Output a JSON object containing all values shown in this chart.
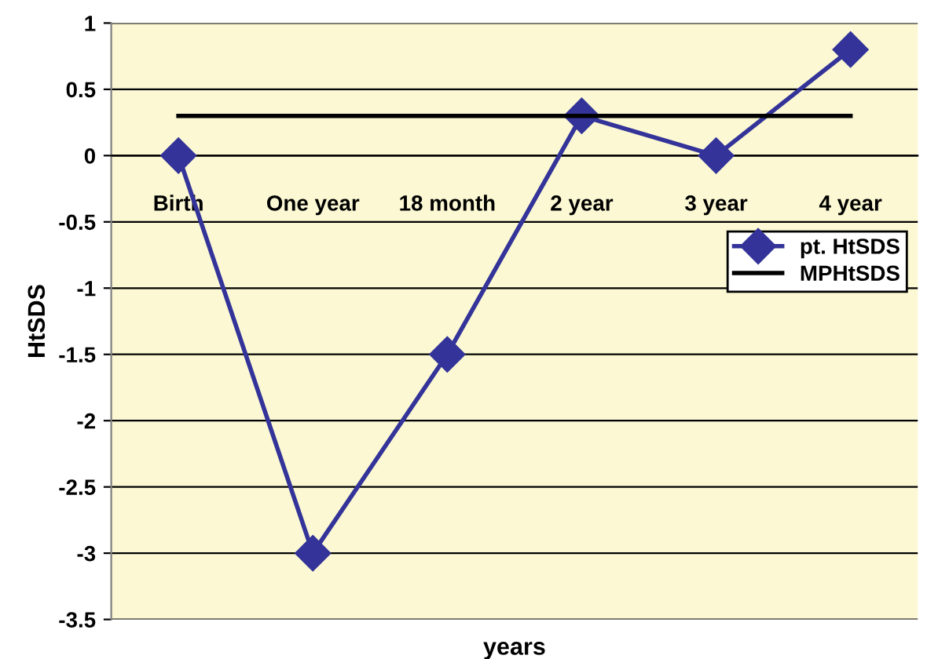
{
  "chart_data": {
    "type": "line",
    "xlabel": "years",
    "ylabel": "HtSDS",
    "categories": [
      "Birth",
      "One year",
      "18 month",
      "2 year",
      "3 year",
      "4 year"
    ],
    "series": [
      {
        "name": "pt. HtSDS",
        "color": "#333399",
        "values": [
          0,
          -3,
          -1.5,
          0.3,
          0,
          0.8
        ],
        "marker": "diamond"
      },
      {
        "name": "MPHtSDS",
        "color": "#000000",
        "values": [
          0.3,
          0.3,
          0.3,
          0.3,
          0.3,
          0.3
        ],
        "marker": "none"
      }
    ],
    "ylim": [
      -3.5,
      1
    ],
    "yticks": [
      1,
      0.5,
      0,
      -0.5,
      -1,
      -1.5,
      -2,
      -2.5,
      -3,
      -3.5
    ],
    "grid": "y",
    "legend": "right",
    "line_style": "solid"
  }
}
